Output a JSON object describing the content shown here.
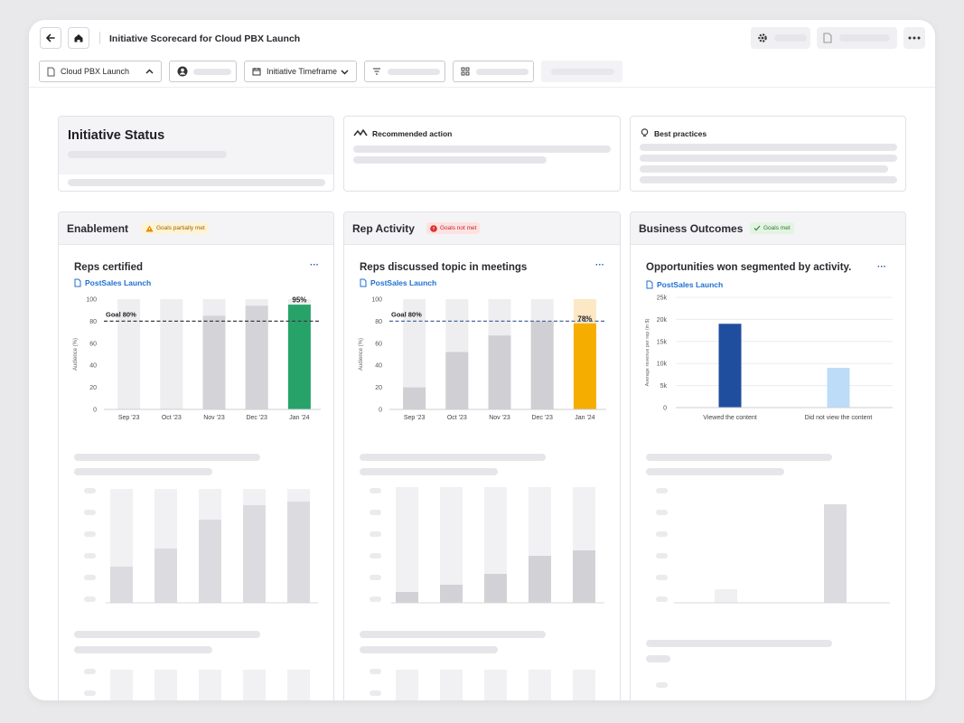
{
  "header": {
    "title": "Initiative Scorecard for Cloud PBX Launch"
  },
  "filters": {
    "initiative": "Cloud PBX Launch",
    "timeframe": "Initiative Timeframe"
  },
  "top_cards": {
    "status_title": "Initiative Status",
    "recommended": "Recommended action",
    "best_practices": "Best practices"
  },
  "panels": [
    {
      "title": "Enablement",
      "badge": "Goals partially met",
      "badge_status": "warning"
    },
    {
      "title": "Rep Activity",
      "badge": "Goals not met",
      "badge_status": "error"
    },
    {
      "title": "Business Outcomes",
      "badge": "Goals met",
      "badge_status": "success"
    }
  ],
  "charts": {
    "reps_certified": {
      "title": "Reps certified",
      "link": "PostSales Launch"
    },
    "reps_discussed": {
      "title": "Reps discussed topic in meetings",
      "link": "PostSales Launch"
    },
    "opps_won": {
      "title": "Opportunities won segmented by activity.",
      "link": "PostSales Launch"
    }
  },
  "chart_data": [
    {
      "type": "bar",
      "title": "Reps certified",
      "categories": [
        "Sep '23",
        "Oct '23",
        "Nov '23",
        "Dec '23",
        "Jan '24"
      ],
      "values": [
        null,
        null,
        85,
        94,
        95
      ],
      "highlight_label": "95%",
      "goal": 80,
      "goal_label": "Goal 80%",
      "ylabel": "Audience (%)",
      "ylim": [
        0,
        100
      ],
      "yticks": [
        0,
        20,
        40,
        60,
        80,
        100
      ],
      "colors": {
        "highlight": "#27a36a",
        "bar": "#d4d4d8",
        "track": "#eeeef1",
        "goal": "#3d3d45"
      }
    },
    {
      "type": "bar",
      "title": "Reps discussed topic in meetings",
      "categories": [
        "Sep '23",
        "Oct '23",
        "Nov '23",
        "Dec '23",
        "Jan '24"
      ],
      "values": [
        20,
        52,
        67,
        80,
        78
      ],
      "highlight_label": "78%",
      "goal": 80,
      "goal_label": "Goal 80%",
      "ylabel": "Audience (%)",
      "ylim": [
        0,
        100
      ],
      "yticks": [
        0,
        20,
        40,
        60,
        80,
        100
      ],
      "colors": {
        "highlight": "#f5ae00",
        "highlight_track": "#fce8c4",
        "bar": "#cfcfd4",
        "track": "#eeeef1",
        "goal": "#4a6a9a"
      }
    },
    {
      "type": "bar",
      "title": "Opportunities won segmented by activity.",
      "categories": [
        "Viewed the content",
        "Did not view the content"
      ],
      "values": [
        19000,
        9000
      ],
      "ylabel": "Average revenue per rep (in $)",
      "ylim": [
        0,
        25000
      ],
      "yticks": [
        0,
        5000,
        10000,
        15000,
        20000,
        25000
      ],
      "ytick_labels": [
        "0",
        "5k",
        "10k",
        "15k",
        "20k",
        "25k"
      ],
      "colors": {
        "series": [
          "#1f4e9e",
          "#bcdcf8"
        ]
      }
    }
  ]
}
